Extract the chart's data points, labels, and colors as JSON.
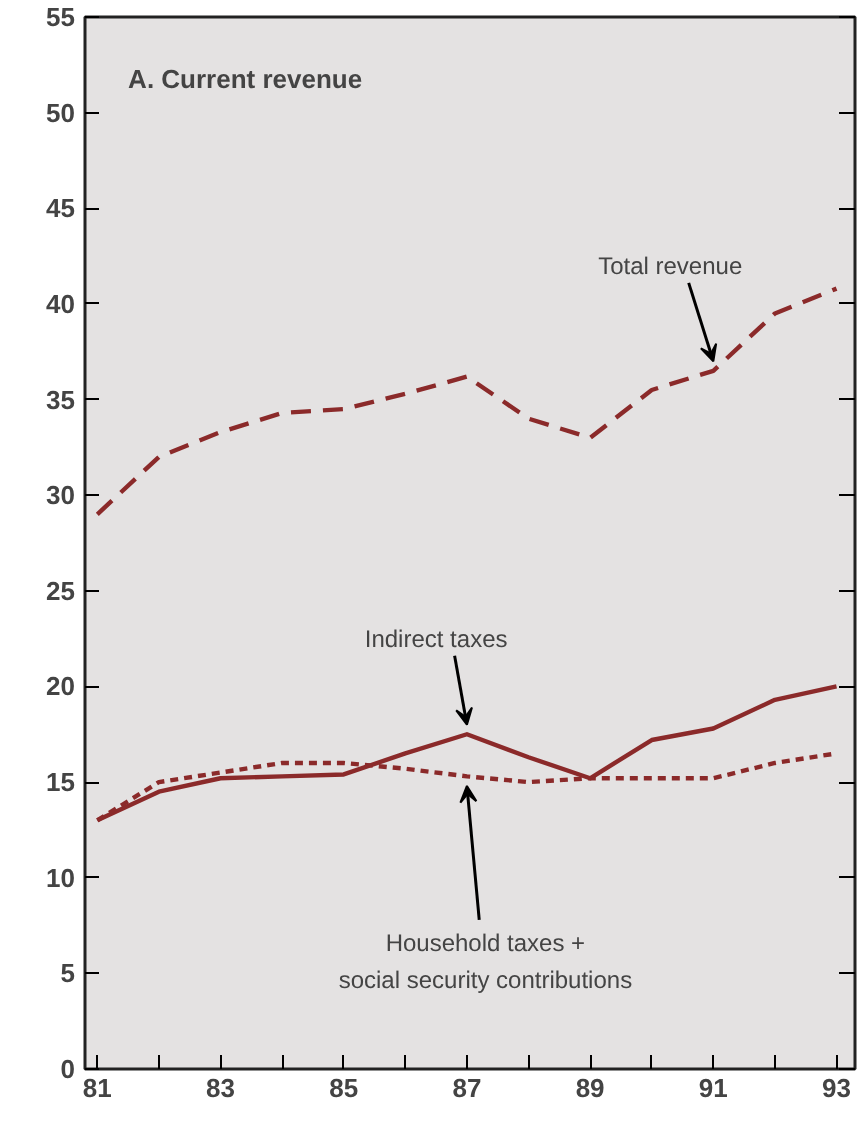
{
  "chart_data": {
    "type": "line",
    "title": "A.  Current revenue",
    "x": [
      81,
      82,
      83,
      84,
      85,
      86,
      87,
      88,
      89,
      90,
      91,
      92,
      93
    ],
    "series": [
      {
        "name": "Total revenue",
        "color": "#8b2a2a",
        "line_style": "dashed",
        "values": [
          29,
          32,
          33.3,
          34.3,
          34.5,
          35.3,
          36.2,
          34,
          33,
          35.5,
          36.5,
          39.5,
          40.8
        ]
      },
      {
        "name": "Indirect taxes",
        "color": "#8b2a2a",
        "line_style": "solid",
        "values": [
          13,
          14.5,
          15.2,
          15.3,
          15.4,
          16.5,
          17.5,
          16.3,
          15.2,
          17.2,
          17.8,
          19.3,
          20
        ]
      },
      {
        "name": "Household taxes +\nsocial security contributions",
        "color": "#8b2a2a",
        "line_style": "dotted",
        "values": [
          13,
          15,
          15.5,
          16,
          16,
          15.7,
          15.3,
          15,
          15.2,
          15.2,
          15.2,
          16,
          16.5
        ]
      }
    ],
    "xlim": [
      80.8,
      93.3
    ],
    "ylim": [
      0,
      55
    ],
    "xticks": [
      81,
      {
        "value": 82,
        "label": null
      },
      83,
      {
        "value": 84,
        "label": null
      },
      85,
      {
        "value": 86,
        "label": null
      },
      87,
      {
        "value": 88,
        "label": null
      },
      89,
      {
        "value": 90,
        "label": null
      },
      91,
      {
        "value": 92,
        "label": null
      },
      93
    ],
    "yticks": [
      0,
      5,
      10,
      15,
      20,
      25,
      30,
      35,
      40,
      45,
      50,
      55
    ],
    "grid": false,
    "legend": false,
    "marker": "none"
  }
}
